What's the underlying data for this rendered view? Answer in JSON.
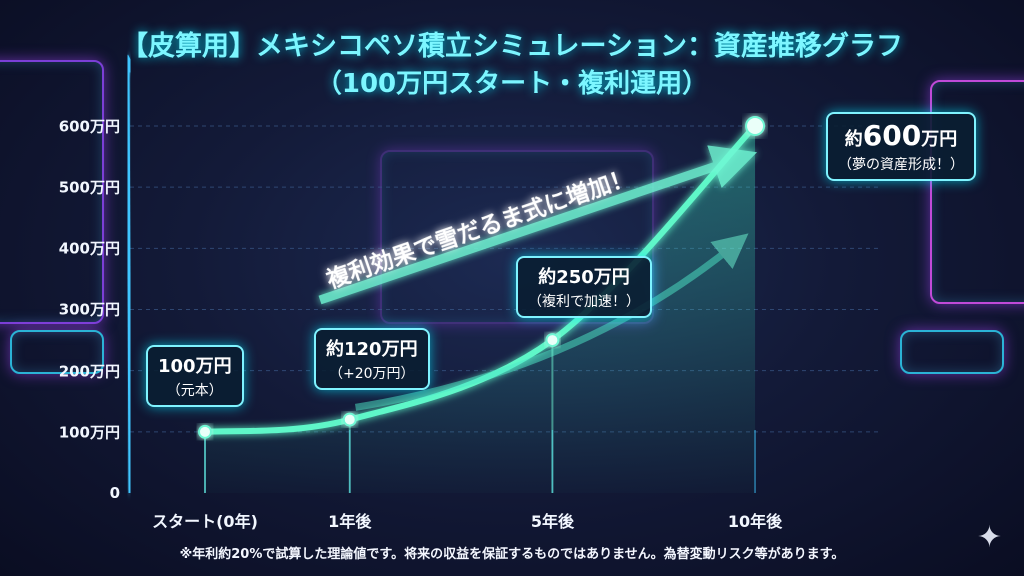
{
  "title_line1": "【皮算用】メキシコペソ積立シミュレーション：資産推移グラフ",
  "title_line2": "（100万円スタート・複利運用）",
  "chart_data": {
    "type": "line",
    "title": "【皮算用】メキシコペソ積立シミュレーション：資産推移グラフ（100万円スタート・複利運用）",
    "x_unit": "年",
    "x_ticks": [
      {
        "x": 0,
        "label": "スタート(0年)"
      },
      {
        "x": 2.5,
        "label": "1年後"
      },
      {
        "x": 6,
        "label": "5年後"
      },
      {
        "x": 9.5,
        "label": "10年後"
      }
    ],
    "y_ticks": [
      {
        "value": 0,
        "label": "0"
      },
      {
        "value": 100,
        "label": "100万円"
      },
      {
        "value": 200,
        "label": "200万円"
      },
      {
        "value": 300,
        "label": "300万円"
      },
      {
        "value": 400,
        "label": "400万円"
      },
      {
        "value": 500,
        "label": "500万円"
      },
      {
        "value": 600,
        "label": "600万円"
      }
    ],
    "ylim": [
      0,
      600
    ],
    "xlim": [
      0,
      10.5
    ],
    "points": [
      {
        "x": 0,
        "y": 100,
        "label": "100万円",
        "note": "（元本）"
      },
      {
        "x": 2.5,
        "y": 120,
        "label": "約120万円",
        "note": "（+20万円）"
      },
      {
        "x": 6,
        "y": 250,
        "label": "約250万円",
        "note": "（複利で加速！）"
      },
      {
        "x": 9.5,
        "y": 600,
        "label_prefix": "約",
        "label_number": "600",
        "label_suffix": "万円",
        "note": "（夢の資産形成！）"
      }
    ],
    "annotation": "複利効果で雪だるま式に増加！",
    "grid": true,
    "colors": {
      "line": "#5ff7c8",
      "axis": "#3fc6ff",
      "grid": "#3b5a8a",
      "callout_border": "#7ff3ff"
    }
  },
  "footnote": "※年利約20%で試算した理論値です。将来の収益を保証するものではありません。為替変動リスク等があります。",
  "icons": [
    "sparkle-icon"
  ]
}
